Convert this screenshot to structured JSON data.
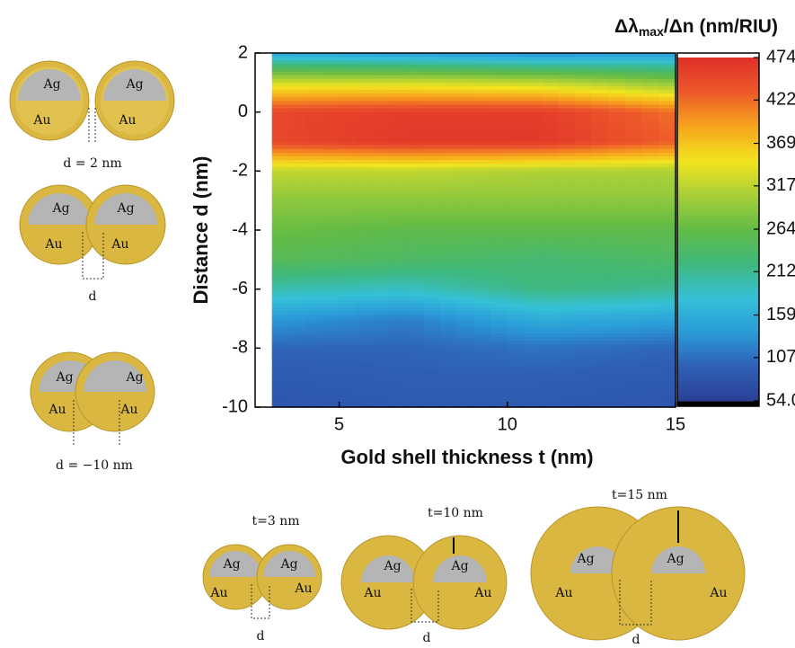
{
  "chart_data": {
    "type": "contour",
    "x_label": "Gold shell thickness t (nm)",
    "y_label": "Distance d (nm)",
    "xlim": [
      2.5,
      15
    ],
    "xticks": [
      5,
      10,
      15
    ],
    "ylim": [
      -10,
      2
    ],
    "yticks": [
      -10,
      -8,
      -6,
      -4,
      -2,
      0,
      2
    ],
    "x": [
      3,
      7,
      11,
      15
    ],
    "y": [
      2,
      1,
      0,
      -1,
      -2,
      -3,
      -4,
      -5,
      -6,
      -7,
      -8,
      -9,
      -10
    ],
    "z": [
      [
        150,
        140,
        130,
        140
      ],
      [
        330,
        330,
        320,
        290
      ],
      [
        450,
        460,
        460,
        420
      ],
      [
        450,
        465,
        465,
        430
      ],
      [
        320,
        320,
        310,
        310
      ],
      [
        290,
        290,
        290,
        290
      ],
      [
        270,
        260,
        260,
        260
      ],
      [
        250,
        240,
        230,
        240
      ],
      [
        200,
        190,
        220,
        210
      ],
      [
        140,
        120,
        160,
        150
      ],
      [
        100,
        100,
        110,
        100
      ],
      [
        90,
        95,
        95,
        90
      ],
      [
        85,
        90,
        90,
        85
      ]
    ],
    "colorbar": {
      "label": {
        "main": "Δλ",
        "sub": "max",
        "rest": "/Δn (nm/RIU)"
      },
      "clim": [
        54,
        474
      ],
      "ticks": [
        {
          "value": 54,
          "label": "54.0"
        },
        107,
        159,
        212,
        264,
        317,
        369,
        422,
        474
      ],
      "colormap": [
        "#2b3f96",
        "#2f5fb5",
        "#2a9ad8",
        "#35c0d8",
        "#3fb87c",
        "#62bb46",
        "#a8cf38",
        "#f2e41f",
        "#f7a51d",
        "#ed5a2a",
        "#e0302a"
      ],
      "over_color": "#ffffff",
      "under_color": "#000000"
    }
  },
  "illustrations": [
    {
      "labels": [
        "Ag",
        "Ag",
        "Au",
        "Au"
      ],
      "caption": "d = 2 nm"
    },
    {
      "labels": [
        "Ag",
        "Ag",
        "Au",
        "Au"
      ],
      "caption": "d"
    },
    {
      "labels": [
        "Ag",
        "Ag",
        "Au",
        "Au"
      ],
      "caption": "d = −10 nm"
    },
    {
      "title": "t=3 nm",
      "labels": [
        "Ag",
        "Ag",
        "Au",
        "Au"
      ],
      "caption": "d"
    },
    {
      "title": "t=10 nm",
      "labels": [
        "Ag",
        "Ag",
        "Au",
        "Au"
      ],
      "caption": "d"
    },
    {
      "title": "t=15 nm",
      "labels": [
        "Ag",
        "Ag",
        "Au",
        "Au"
      ],
      "caption": "d"
    }
  ]
}
